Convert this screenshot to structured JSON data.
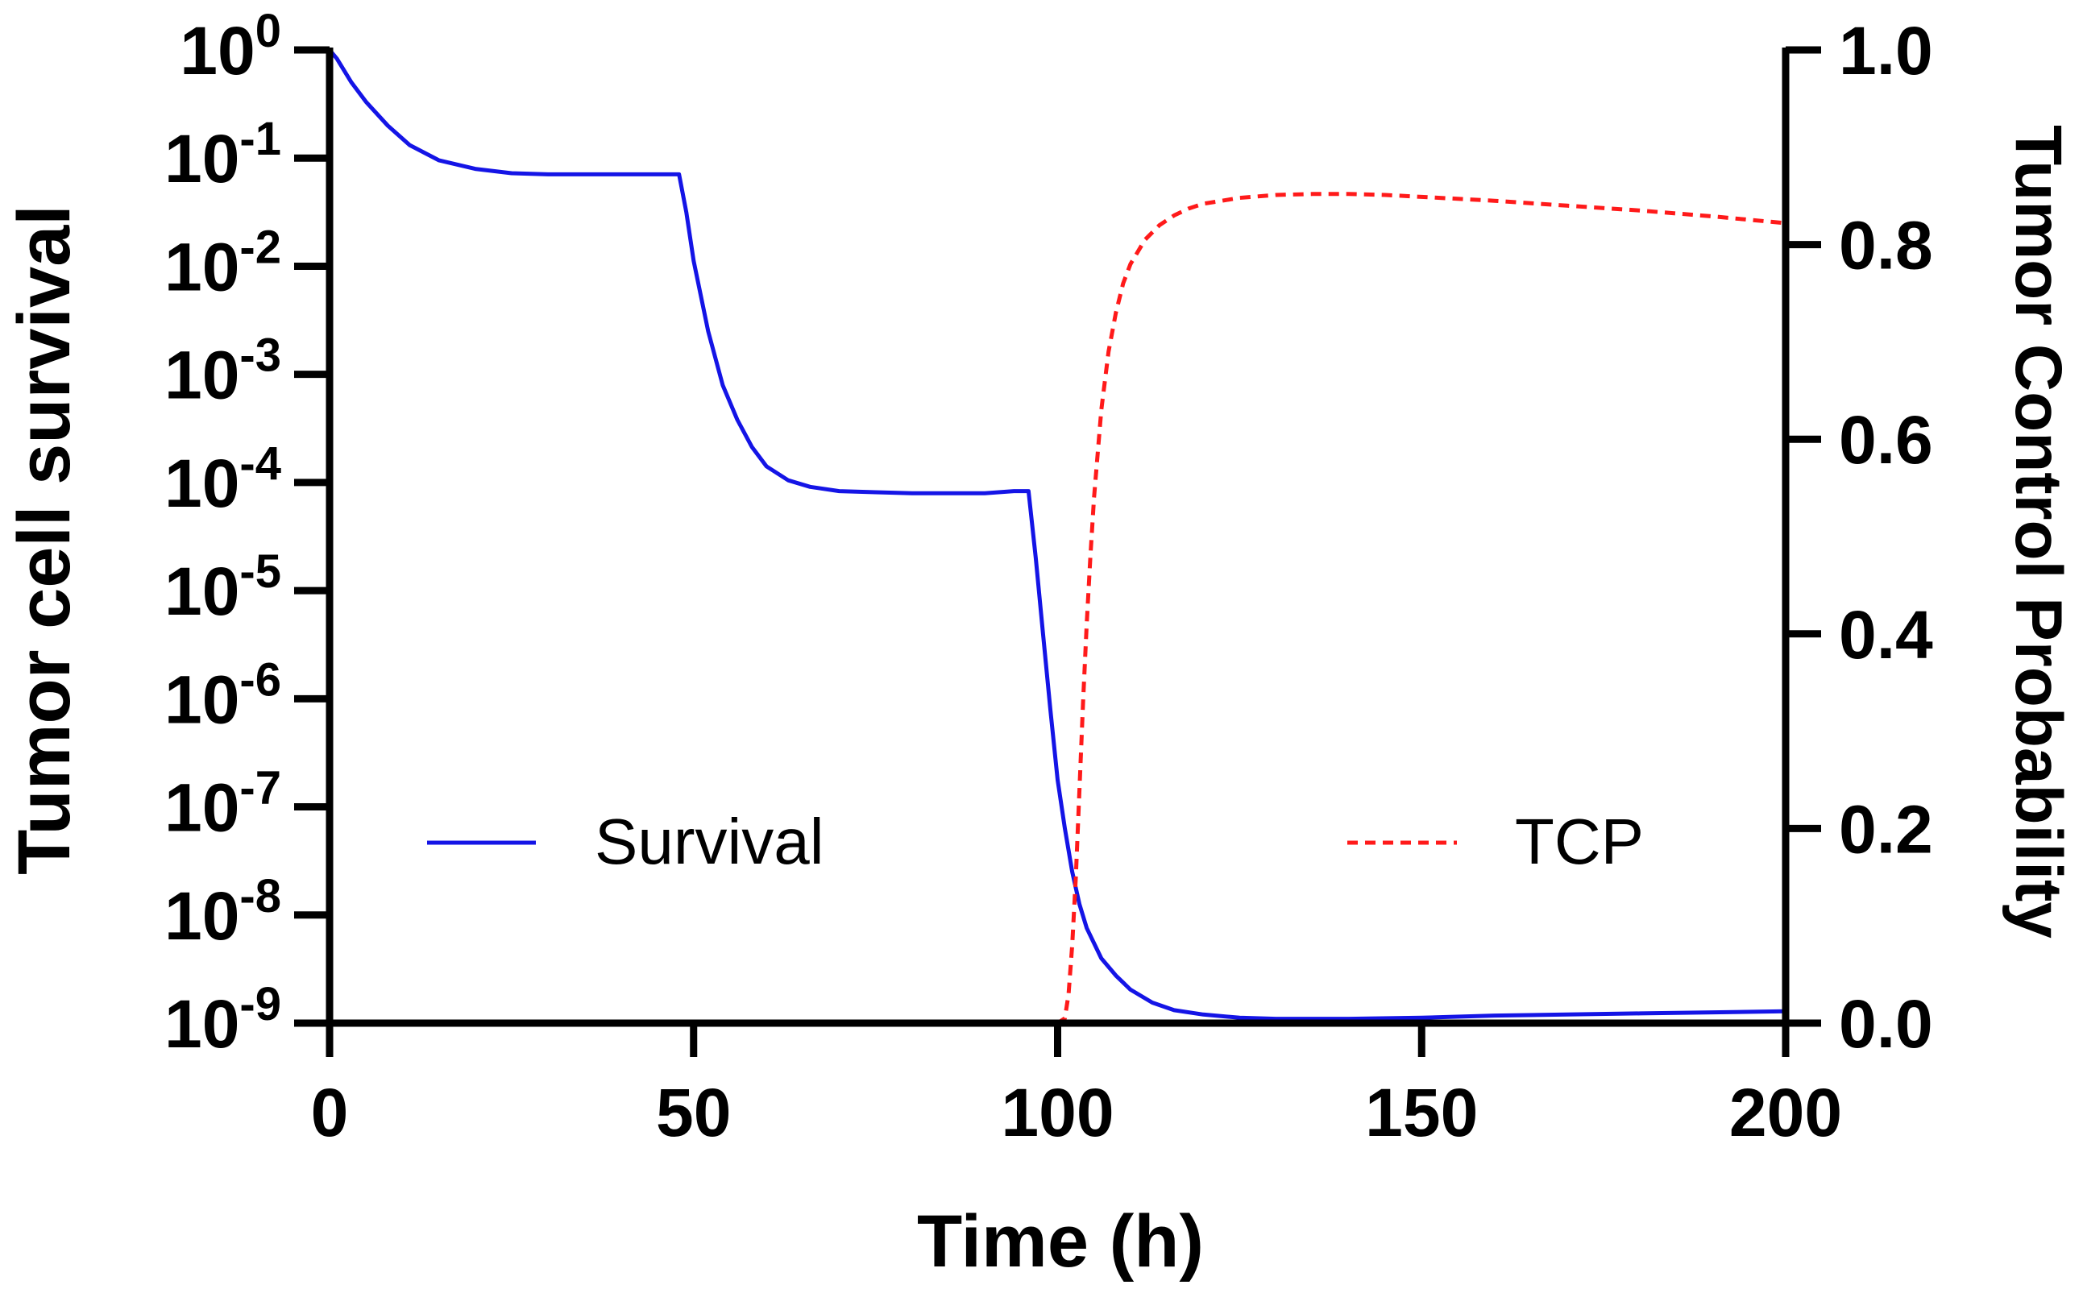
{
  "chart_data": {
    "type": "line",
    "xlabel": "Time (h)",
    "ylabel_left": "Tumor cell survival",
    "ylabel_right": "Tumor Control Probability",
    "xlim": [
      0,
      200
    ],
    "x_ticks": [
      "0",
      "50",
      "100",
      "150",
      "200"
    ],
    "x_tick_values": [
      0,
      50,
      100,
      150,
      200
    ],
    "ylim_left_log10": [
      -9,
      0
    ],
    "y_left_tick_exponents": [
      "0",
      "-1",
      "-2",
      "-3",
      "-4",
      "-5",
      "-6",
      "-7",
      "-8",
      "-9"
    ],
    "y_left_tick_base": "10",
    "ylim_right": [
      0,
      1
    ],
    "y_right_ticks": [
      "1.0",
      "0.8",
      "0.6",
      "0.4",
      "0.2",
      "0.0"
    ],
    "y_right_tick_values": [
      1.0,
      0.8,
      0.6,
      0.4,
      0.2,
      0.0
    ],
    "series": [
      {
        "name": "Survival",
        "axis": "left",
        "scale": "log10",
        "style": "solid",
        "color": "#1414e6",
        "x": [
          0,
          1,
          3,
          5,
          8,
          11,
          15,
          20,
          25,
          30,
          35,
          40,
          45,
          48,
          49,
          50,
          52,
          54,
          56,
          58,
          60,
          63,
          66,
          70,
          75,
          80,
          85,
          90,
          94,
          96,
          97,
          98,
          99,
          100,
          101,
          102,
          103,
          104,
          106,
          108,
          110,
          113,
          116,
          120,
          125,
          130,
          140,
          150,
          160,
          170,
          180,
          190,
          200
        ],
        "y_log10": [
          0,
          -0.08,
          -0.3,
          -0.48,
          -0.7,
          -0.88,
          -1.02,
          -1.1,
          -1.14,
          -1.15,
          -1.15,
          -1.15,
          -1.15,
          -1.15,
          -1.5,
          -1.95,
          -2.6,
          -3.1,
          -3.42,
          -3.67,
          -3.85,
          -3.98,
          -4.04,
          -4.08,
          -4.09,
          -4.1,
          -4.1,
          -4.1,
          -4.08,
          -4.08,
          -4.7,
          -5.4,
          -6.1,
          -6.75,
          -7.2,
          -7.6,
          -7.9,
          -8.12,
          -8.4,
          -8.56,
          -8.69,
          -8.81,
          -8.88,
          -8.92,
          -8.95,
          -8.96,
          -8.96,
          -8.95,
          -8.93,
          -8.92,
          -8.91,
          -8.9,
          -8.89
        ]
      },
      {
        "name": "TCP",
        "axis": "right",
        "scale": "linear",
        "style": "dashed",
        "color": "#ff1a1a",
        "x": [
          0,
          50,
          100,
          101,
          101.5,
          102,
          102.5,
          103,
          103.5,
          104,
          104.5,
          105,
          106,
          107,
          108,
          109,
          110,
          112,
          114,
          116,
          118,
          120,
          125,
          130,
          135,
          140,
          145,
          150,
          160,
          170,
          180,
          190,
          200
        ],
        "y": [
          0,
          0,
          0,
          0.005,
          0.03,
          0.08,
          0.15,
          0.24,
          0.33,
          0.41,
          0.48,
          0.54,
          0.63,
          0.69,
          0.73,
          0.76,
          0.78,
          0.805,
          0.82,
          0.83,
          0.837,
          0.842,
          0.848,
          0.851,
          0.852,
          0.852,
          0.851,
          0.849,
          0.845,
          0.84,
          0.835,
          0.829,
          0.822
        ]
      }
    ],
    "legend": [
      "Survival",
      "TCP"
    ],
    "grid": false
  }
}
